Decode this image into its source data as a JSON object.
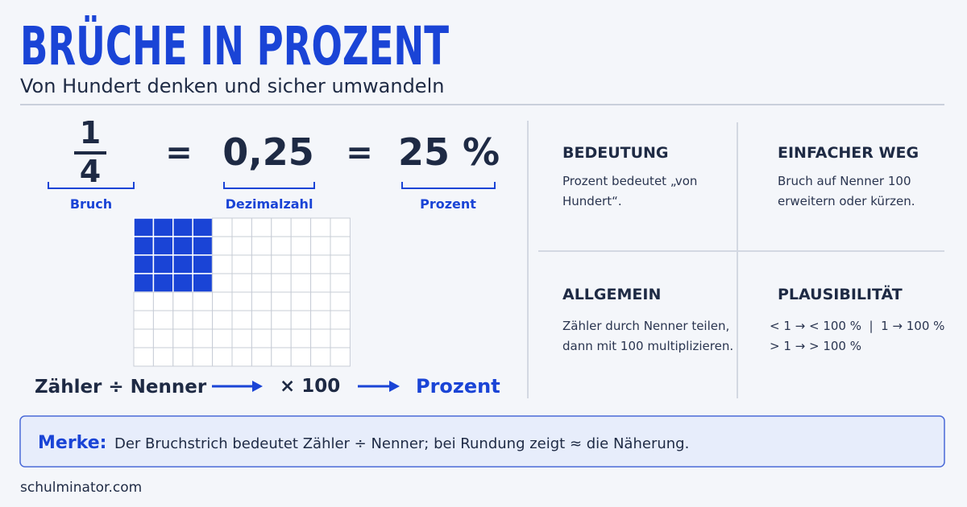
{
  "header": {
    "title": "BRÜCHE IN PROZENT",
    "subtitle": "Von Hundert denken und sicher umwandeln"
  },
  "conversion": {
    "numerator": "1",
    "denominator": "4",
    "equals": "=",
    "decimal": "0,25",
    "percent": "25 %",
    "labels": [
      "Bruch",
      "Dezimalzahl",
      "Prozent"
    ]
  },
  "formula": {
    "step1": "Zähler ÷ Nenner",
    "step2": "× 100",
    "result": "Prozent"
  },
  "cards": [
    {
      "heading": "BEDEUTUNG",
      "lines": [
        "Prozent bedeutet „von",
        "Hundert“."
      ]
    },
    {
      "heading": "EINFACHER WEG",
      "lines": [
        "Bruch auf Nenner 100",
        "erweitern oder kürzen."
      ]
    },
    {
      "heading": "ALLGEMEIN",
      "lines": [
        "Zähler durch Nenner teilen,",
        "dann mit 100 multiplizieren."
      ]
    },
    {
      "heading": "PLAUSIBILITÄT",
      "lines": [
        "< 1 → < 100 %  |  1 → 100 %",
        "> 1 → > 100 %"
      ]
    }
  ],
  "note": {
    "label": "Merke:",
    "text": "Der Bruchstrich bedeutet Zähler ÷ Nenner; bei Rundung zeigt ≈ die Näherung."
  },
  "footer": "schulminator.com"
}
